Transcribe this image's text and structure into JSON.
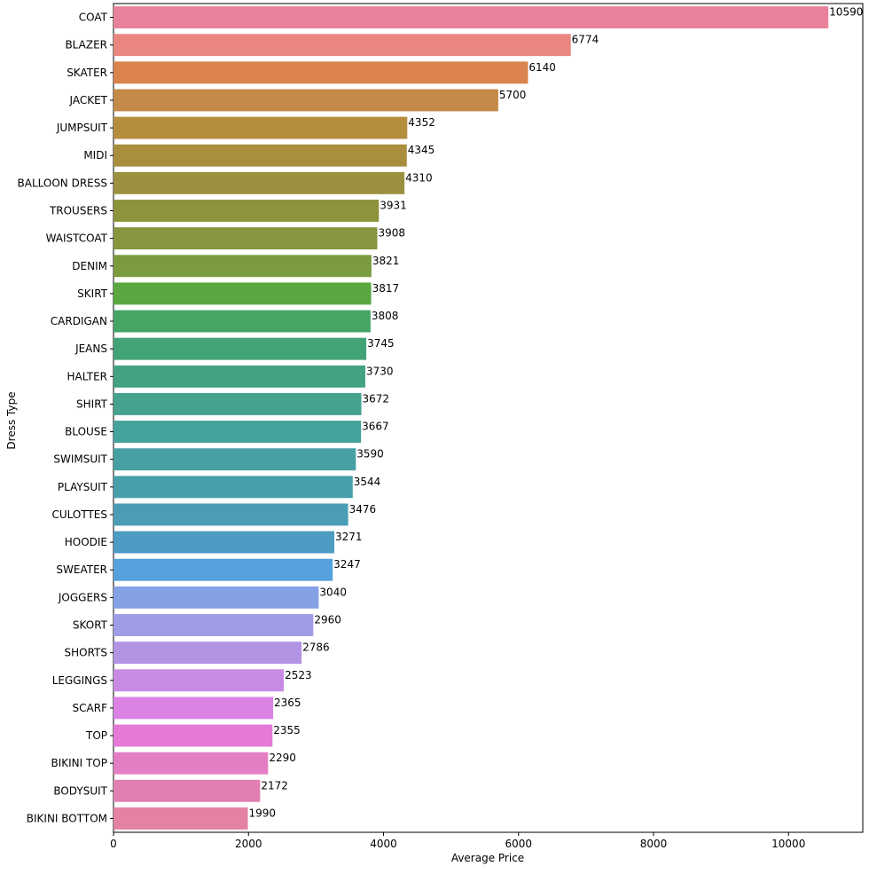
{
  "chart_data": {
    "type": "bar",
    "orientation": "horizontal",
    "title": "",
    "xlabel": "Average Price",
    "ylabel": "Dress Type",
    "xlim": [
      0,
      11100
    ],
    "xticks": [
      0,
      2000,
      4000,
      6000,
      8000,
      10000
    ],
    "grid": false,
    "legend": "none",
    "categories": [
      "COAT",
      "BLAZER",
      "SKATER",
      "JACKET",
      "JUMPSUIT",
      "MIDI",
      "BALLOON DRESS",
      "TROUSERS",
      "WAISTCOAT",
      "DENIM",
      "SKIRT",
      "CARDIGAN",
      "JEANS",
      "HALTER",
      "SHIRT",
      "BLOUSE",
      "SWIMSUIT",
      "PLAYSUIT",
      "CULOTTES",
      "HOODIE",
      "SWEATER",
      "JOGGERS",
      "SKORT",
      "SHORTS",
      "LEGGINGS",
      "SCARF",
      "TOP",
      "BIKINI TOP",
      "BODYSUIT",
      "BIKINI BOTTOM"
    ],
    "values": [
      10590,
      6774,
      6140,
      5700,
      4352,
      4345,
      4310,
      3931,
      3908,
      3821,
      3817,
      3808,
      3745,
      3730,
      3672,
      3667,
      3590,
      3544,
      3476,
      3271,
      3247,
      3040,
      2960,
      2786,
      2523,
      2365,
      2355,
      2290,
      2172,
      1990
    ],
    "data_labels": [
      "10590",
      "6774",
      "6140",
      "5700",
      "4352",
      "4345",
      "4310",
      "3931",
      "3908",
      "3821",
      "3817",
      "3808",
      "3745",
      "3730",
      "3672",
      "3667",
      "3590",
      "3544",
      "3476",
      "3271",
      "3247",
      "3040",
      "2960",
      "2786",
      "2523",
      "2365",
      "2355",
      "2290",
      "2172",
      "1990"
    ],
    "colors": [
      "#e8829a",
      "#e8867f",
      "#db834c",
      "#c58a48",
      "#b58d3f",
      "#a98e3e",
      "#9b903d",
      "#8c933b",
      "#85963f",
      "#7a9b3e",
      "#5aa740",
      "#44a565",
      "#42a476",
      "#42a282",
      "#44a28f",
      "#45a29a",
      "#47a0a4",
      "#489fab",
      "#4a9db5",
      "#4b9bc3",
      "#55a1db",
      "#85a1e6",
      "#a09de7",
      "#b293e4",
      "#c78be4",
      "#dc82e5",
      "#e479d6",
      "#e47ec4",
      "#e27fb2",
      "#e482a3"
    ]
  }
}
